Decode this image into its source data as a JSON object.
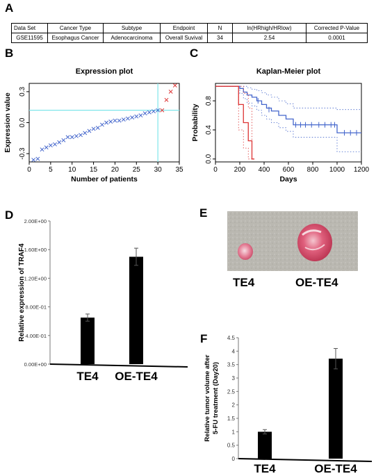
{
  "panel_labels": {
    "a": "A",
    "b": "B",
    "c": "C",
    "d": "D",
    "e": "E",
    "f": "F"
  },
  "table": {
    "headers": [
      "Data Set",
      "Cancer Type",
      "Subtype",
      "Endpoint",
      "N",
      "ln(HRhigh/HRlow)",
      "Corrected P-Value"
    ],
    "row": [
      "GSE11595",
      "Esophagus Cancer",
      "Adenocarcinoma",
      "Overall Suvival",
      "34",
      "2.54",
      "0.0001"
    ]
  },
  "photo": {
    "labels": [
      "TE4",
      "OE-TE4"
    ]
  },
  "chart_data": [
    {
      "id": "B",
      "type": "scatter",
      "title": "Expression plot",
      "xlabel": "Number of patients",
      "ylabel": "Expression value",
      "xlim": [
        0,
        35
      ],
      "ylim": [
        -0.38,
        0.38
      ],
      "xticks": [
        0,
        5,
        10,
        15,
        20,
        25,
        30,
        35
      ],
      "yticks": [
        -0.3,
        0.0,
        0.3
      ],
      "cutoff_x": 30,
      "cutoff_y": 0.12,
      "series": [
        {
          "color": "#4466cc",
          "marker": "x",
          "x": [
            1,
            2,
            3,
            4,
            5,
            6,
            7,
            8,
            9,
            10,
            11,
            12,
            13,
            14,
            15,
            16,
            17,
            18,
            19,
            20,
            21,
            22,
            23,
            24,
            25,
            26,
            27,
            28,
            29,
            30
          ],
          "y": [
            -0.36,
            -0.35,
            -0.26,
            -0.24,
            -0.22,
            -0.21,
            -0.19,
            -0.17,
            -0.14,
            -0.14,
            -0.13,
            -0.12,
            -0.1,
            -0.08,
            -0.06,
            -0.05,
            -0.02,
            0.0,
            0.01,
            0.02,
            0.02,
            0.03,
            0.04,
            0.05,
            0.06,
            0.07,
            0.09,
            0.1,
            0.11,
            0.12
          ]
        },
        {
          "color": "#dd3333",
          "marker": "x",
          "x": [
            31,
            32,
            33,
            34
          ],
          "y": [
            0.12,
            0.22,
            0.3,
            0.36
          ]
        }
      ]
    },
    {
      "id": "C",
      "type": "line",
      "title": "Kaplan-Meier plot",
      "xlabel": "Days",
      "ylabel": "Probability",
      "xlim": [
        0,
        1200
      ],
      "ylim": [
        -0.04,
        1.04
      ],
      "xticks": [
        0,
        200,
        400,
        600,
        800,
        1000,
        1200
      ],
      "yticks": [
        0.0,
        0.4,
        0.8
      ],
      "series": [
        {
          "color": "#4466cc",
          "x": [
            0,
            200,
            230,
            260,
            300,
            340,
            380,
            420,
            460,
            520,
            580,
            640,
            1000,
            1200
          ],
          "y": [
            1.0,
            0.97,
            0.92,
            0.88,
            0.85,
            0.8,
            0.75,
            0.7,
            0.66,
            0.6,
            0.55,
            0.47,
            0.36,
            0.36
          ],
          "upper": [
            1.0,
            1.0,
            1.0,
            0.98,
            0.96,
            0.94,
            0.91,
            0.88,
            0.85,
            0.8,
            0.76,
            0.7,
            0.68,
            0.68
          ],
          "lower": [
            1.0,
            0.9,
            0.83,
            0.77,
            0.73,
            0.67,
            0.6,
            0.55,
            0.5,
            0.43,
            0.38,
            0.3,
            0.1,
            0.1
          ],
          "censor_x": [
            350,
            440,
            660,
            700,
            740,
            790,
            850,
            900,
            950,
            980,
            1060,
            1110,
            1160
          ],
          "censor_y": [
            0.8,
            0.68,
            0.47,
            0.47,
            0.47,
            0.47,
            0.47,
            0.47,
            0.47,
            0.47,
            0.36,
            0.36,
            0.36
          ]
        },
        {
          "color": "#dd3333",
          "x": [
            0,
            190,
            230,
            270,
            300,
            320
          ],
          "y": [
            1.0,
            0.75,
            0.5,
            0.25,
            0.0,
            0.0
          ],
          "upper": [
            1.0,
            1.0,
            0.9,
            0.7,
            0.0,
            0.0
          ],
          "lower": [
            1.0,
            0.4,
            0.15,
            0.0,
            0.0,
            0.0
          ]
        }
      ]
    },
    {
      "id": "D",
      "type": "bar",
      "title": "",
      "xlabel": "",
      "ylabel": "Relative expression of TRAF4",
      "categories": [
        "TE4",
        "OE-TE4"
      ],
      "values": [
        0.65,
        1.5
      ],
      "errors": [
        0.05,
        0.12
      ],
      "ylim": [
        0,
        2.0
      ],
      "ytick_labels": [
        "0.00E+00",
        "4.00E-01",
        "8.00E-01",
        "1.20E+00",
        "1.60E+00",
        "2.00E+00"
      ],
      "yticks": [
        0,
        0.4,
        0.8,
        1.2,
        1.6,
        2.0
      ]
    },
    {
      "id": "F",
      "type": "bar",
      "title": "",
      "xlabel": "",
      "ylabel": "Relative tumor volume after 5-FU treatment (Day20)",
      "ylabel_lines": [
        "Relative tumor volume after",
        "5-FU treatment (Day20)"
      ],
      "categories": [
        "TE4",
        "OE-TE4"
      ],
      "values": [
        1.0,
        3.72
      ],
      "errors": [
        0.08,
        0.38
      ],
      "ylim": [
        0,
        4.5
      ],
      "yticks": [
        0,
        0.5,
        1,
        1.5,
        2,
        2.5,
        3,
        3.5,
        4,
        4.5
      ],
      "ytick_labels": [
        "0",
        "0.5",
        "1",
        "1.5",
        "2",
        "2.5",
        "3",
        "3.5",
        "4",
        "4.5"
      ]
    }
  ]
}
